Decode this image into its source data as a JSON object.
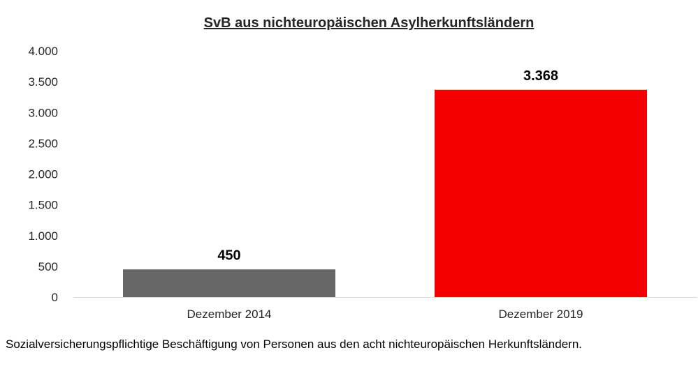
{
  "chart_data": {
    "type": "bar",
    "title": "SvB aus nichteuropäischen Asylherkunftsländern",
    "categories": [
      "Dezember 2014",
      "Dezember 2019"
    ],
    "values": [
      450,
      3368
    ],
    "value_labels": [
      "450",
      "3.368"
    ],
    "bar_colors": [
      "#666666",
      "#f50000"
    ],
    "xlabel": "",
    "ylabel": "",
    "ylim": [
      0,
      4000
    ],
    "yticks": [
      0,
      500,
      1000,
      1500,
      2000,
      2500,
      3000,
      3500,
      4000
    ],
    "ytick_labels": [
      "0",
      "500",
      "1.000",
      "1.500",
      "2.000",
      "2.500",
      "3.000",
      "3.500",
      "4.000"
    ],
    "grid": false,
    "legend": "none"
  },
  "caption": "Sozialversicherungspflichtige Beschäftigung von Personen aus den acht nichteuropäischen Herkunftsländern."
}
